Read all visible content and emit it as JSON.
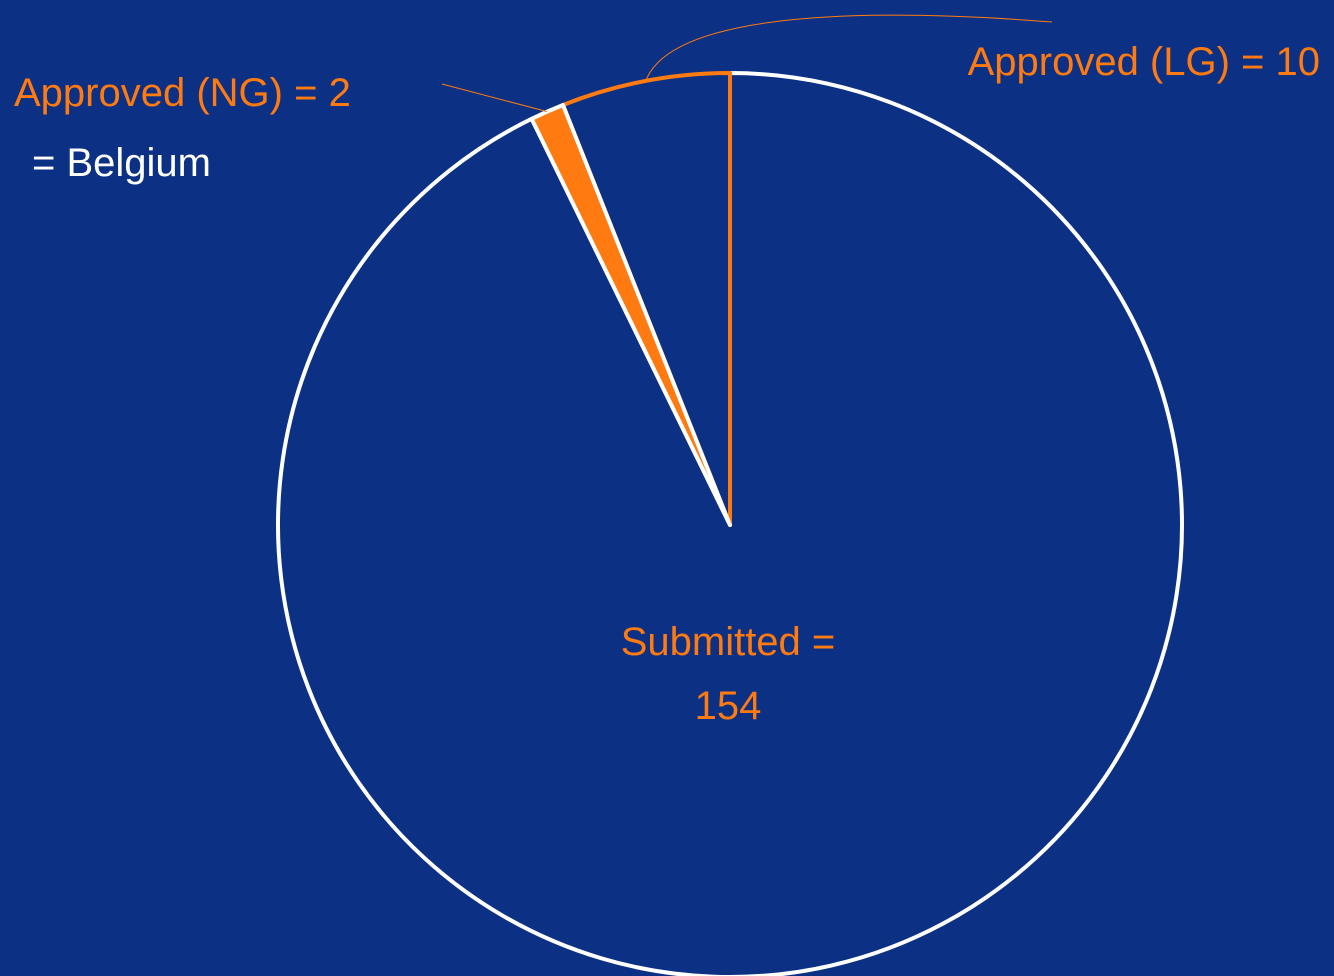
{
  "background_color": "#0c3184",
  "chart_data": {
    "type": "pie",
    "title": "",
    "slices": [
      {
        "label": "Submitted",
        "value": 154,
        "fill": "#0c3184",
        "stroke": "#ffffff"
      },
      {
        "label": "Approved (LG)",
        "value": 10,
        "fill": "#0c3184",
        "stroke": "#ff7a10"
      },
      {
        "label": "Approved (NG)",
        "value": 2,
        "fill": "#ff7a10",
        "stroke": "#ffffff"
      }
    ],
    "data_labels": {
      "submitted_line1": "Submitted =",
      "submitted_line2": "154",
      "approved_lg": "Approved (LG) = 10",
      "approved_ng": "Approved (NG) = 2"
    },
    "annotation": "= Belgium",
    "label_color": "#ff7a10",
    "annotation_color": "#ffffff"
  }
}
